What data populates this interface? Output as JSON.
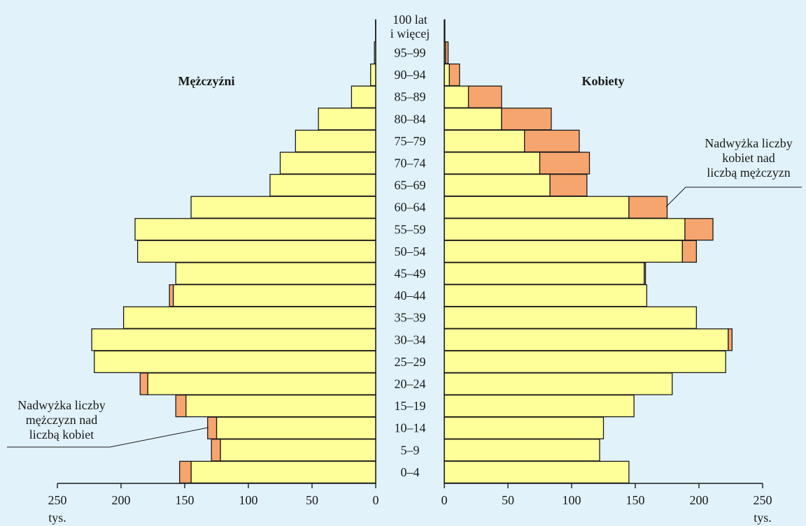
{
  "colors": {
    "background": "#e1f2fb",
    "base": "#ffff99",
    "excess": "#f7a56e",
    "outline": "#1a1a1a"
  },
  "chart_data": {
    "type": "bar",
    "subtype": "population-pyramid",
    "left_title": "Mężczyźni",
    "right_title": "Kobiety",
    "age_groups": [
      "0–4",
      "5–9",
      "10–14",
      "15–19",
      "20–24",
      "25–29",
      "30–34",
      "35–39",
      "40–44",
      "45–49",
      "50–54",
      "55–59",
      "60–64",
      "65–69",
      "70–74",
      "75–79",
      "80–84",
      "85–89",
      "90–94",
      "95–99",
      "100 lat\ni więcej"
    ],
    "series": [
      {
        "name": "Mężczyźni",
        "values": [
          154,
          129,
          132,
          157,
          185,
          221,
          223,
          198,
          162,
          157,
          187,
          189,
          145,
          83,
          75,
          63,
          45,
          19,
          4,
          1,
          0.2
        ]
      },
      {
        "name": "Kobiety",
        "values": [
          145,
          122,
          125,
          149,
          179,
          221,
          226,
          198,
          159,
          158,
          198,
          211,
          175,
          112,
          114,
          106,
          84,
          45,
          12,
          3,
          0.5
        ]
      }
    ],
    "xlim": [
      0,
      250
    ],
    "x_ticks": [
      0,
      50,
      100,
      150,
      200,
      250
    ],
    "unit": "tys.",
    "annotations": {
      "male_excess": "Nadwyżka liczby\nmężczyzn nad\nliczbą kobiet",
      "female_excess": "Nadwyżka liczby\nkobiet nad\nliczbą mężczyzn"
    }
  }
}
